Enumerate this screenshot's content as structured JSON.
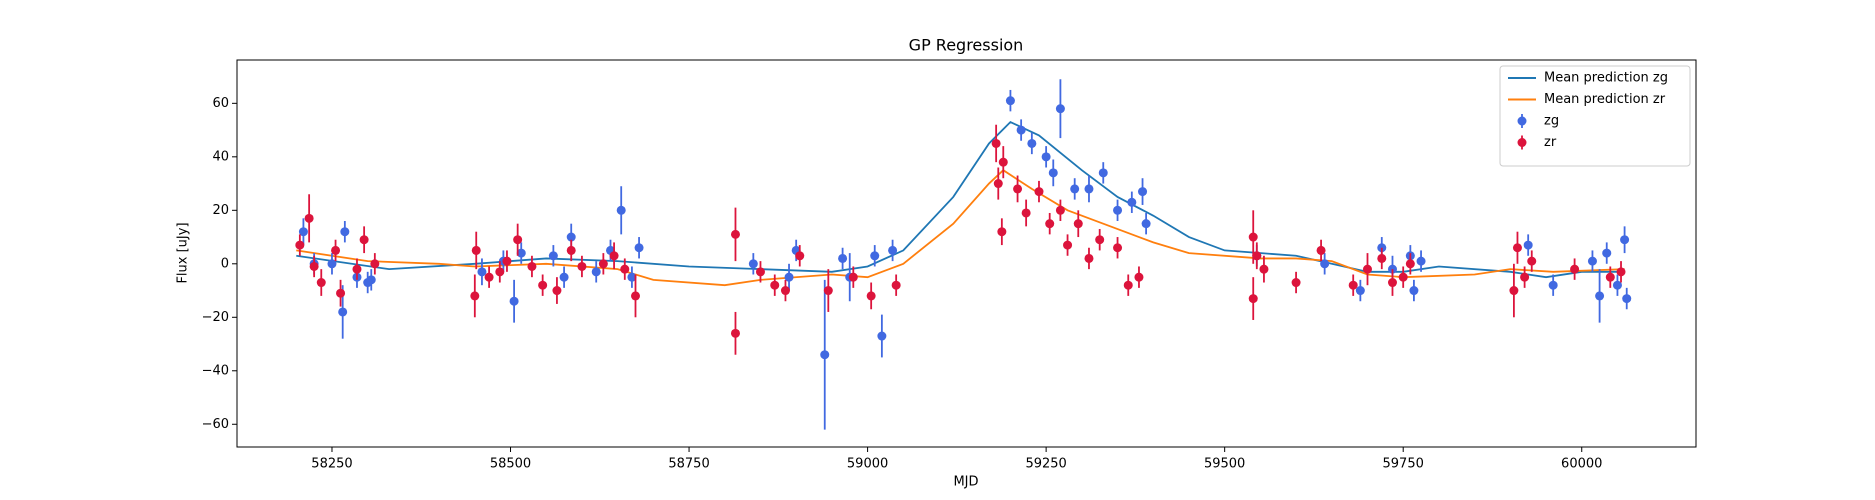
{
  "chart_data": {
    "type": "errorbar",
    "title": "GP Regression",
    "x_label": "MJD",
    "y_label": "Flux [uJy]",
    "xlim": [
      58117,
      60160
    ],
    "ylim": [
      -68.5,
      76.2
    ],
    "xticks": [
      58250,
      58500,
      58750,
      59000,
      59250,
      59500,
      59750,
      60000
    ],
    "yticks": [
      {
        "value": -60,
        "label": "−60"
      },
      {
        "value": -40,
        "label": "−40"
      },
      {
        "value": -20,
        "label": "−20"
      },
      0,
      20,
      40,
      60
    ],
    "legend": "upper right",
    "series": [
      {
        "name": "Mean prediction zg",
        "type": "line",
        "color": "#1f77b4",
        "x": [
          58200,
          58330,
          58450,
          58550,
          58650,
          58750,
          58850,
          58950,
          59000,
          59050,
          59120,
          59170,
          59200,
          59240,
          59300,
          59350,
          59400,
          59450,
          59500,
          59600,
          59650,
          59700,
          59750,
          59800,
          59900,
          59950,
          60000,
          60060
        ],
        "values": [
          3,
          -2,
          0,
          2,
          1,
          -1,
          -2,
          -3,
          -1,
          5,
          25,
          45,
          53,
          48,
          35,
          25,
          18,
          10,
          5,
          3,
          0,
          -3,
          -3,
          -1,
          -3,
          -5,
          -3,
          -3
        ]
      },
      {
        "name": "Mean prediction zr",
        "type": "line",
        "color": "#ff7f0e",
        "x": [
          58200,
          58300,
          58400,
          58450,
          58550,
          58650,
          58700,
          58800,
          58850,
          58950,
          59000,
          59050,
          59120,
          59170,
          59190,
          59230,
          59280,
          59330,
          59400,
          59450,
          59550,
          59600,
          59650,
          59700,
          59750,
          59850,
          59900,
          59960,
          60060
        ],
        "values": [
          5,
          1,
          0,
          -1,
          0,
          -2,
          -6,
          -8,
          -6,
          -4,
          -5,
          0,
          15,
          30,
          35,
          28,
          20,
          15,
          8,
          4,
          2,
          2,
          1,
          -4,
          -5,
          -4,
          -2,
          -3,
          -2
        ]
      },
      {
        "name": "zg",
        "type": "errorbar",
        "color": "#4169e1",
        "x": [
          58210,
          58225,
          58250,
          58265,
          58268,
          58285,
          58300,
          58305,
          58460,
          58490,
          58505,
          58515,
          58560,
          58575,
          58585,
          58620,
          58640,
          58655,
          58670,
          58680,
          58840,
          58890,
          58900,
          58940,
          58965,
          58975,
          59010,
          59020,
          59035,
          59200,
          59215,
          59230,
          59250,
          59260,
          59270,
          59290,
          59310,
          59330,
          59350,
          59370,
          59385,
          59390,
          59545,
          59640,
          59690,
          59720,
          59735,
          59760,
          59765,
          59775,
          59925,
          59960,
          60015,
          60025,
          60035,
          60050,
          60060,
          60063
        ],
        "values": [
          12,
          0,
          0,
          -18,
          12,
          -5,
          -7,
          -6,
          -3,
          1,
          -14,
          4,
          3,
          -5,
          10,
          -3,
          5,
          20,
          -5,
          6,
          0,
          -5,
          5,
          -34,
          2,
          -5,
          3,
          -27,
          5,
          61,
          50,
          45,
          40,
          34,
          58,
          28,
          28,
          34,
          20,
          23,
          27,
          15,
          3,
          0,
          -10,
          6,
          -2,
          3,
          -10,
          1,
          7,
          -8,
          1,
          -12,
          4,
          -8,
          9,
          -13
        ],
        "errors": [
          5,
          4,
          4,
          10,
          4,
          4,
          4,
          4,
          5,
          4,
          8,
          4,
          4,
          4,
          5,
          4,
          4,
          9,
          4,
          4,
          4,
          5,
          4,
          28,
          4,
          9,
          4,
          8,
          4,
          4,
          4,
          4,
          4,
          5,
          11,
          4,
          5,
          4,
          4,
          4,
          5,
          4,
          4,
          4,
          4,
          4,
          5,
          4,
          4,
          4,
          4,
          4,
          4,
          10,
          4,
          4,
          5,
          4
        ]
      },
      {
        "name": "zr",
        "type": "errorbar",
        "color": "#dc143c",
        "x": [
          58205,
          58218,
          58225,
          58235,
          58255,
          58262,
          58285,
          58295,
          58310,
          58450,
          58452,
          58470,
          58485,
          58495,
          58510,
          58530,
          58545,
          58565,
          58585,
          58600,
          58630,
          58645,
          58660,
          58675,
          58815,
          58815,
          58850,
          58870,
          58885,
          58905,
          58945,
          58980,
          59005,
          59040,
          59180,
          59183,
          59188,
          59190,
          59210,
          59222,
          59240,
          59255,
          59270,
          59280,
          59295,
          59310,
          59325,
          59350,
          59365,
          59380,
          59540,
          59540,
          59545,
          59555,
          59600,
          59635,
          59680,
          59700,
          59720,
          59735,
          59750,
          59760,
          59905,
          59910,
          59920,
          59930,
          59990,
          60040,
          60055
        ],
        "values": [
          7,
          17,
          -1,
          -7,
          5,
          -11,
          -2,
          9,
          0,
          -12,
          5,
          -5,
          -3,
          1,
          9,
          -1,
          -8,
          -10,
          5,
          -1,
          0,
          3,
          -2,
          -12,
          11,
          -26,
          -3,
          -8,
          -10,
          3,
          -10,
          -5,
          -12,
          -8,
          45,
          30,
          12,
          38,
          28,
          19,
          27,
          15,
          20,
          7,
          15,
          2,
          9,
          6,
          -8,
          -5,
          -13,
          10,
          3,
          -2,
          -7,
          5,
          -8,
          -2,
          2,
          -7,
          -5,
          0,
          -10,
          6,
          -5,
          1,
          -2,
          -5,
          -3
        ],
        "errors": [
          4,
          9,
          4,
          5,
          4,
          5,
          4,
          5,
          4,
          8,
          7,
          4,
          4,
          4,
          6,
          4,
          4,
          5,
          4,
          4,
          4,
          5,
          4,
          8,
          10,
          8,
          4,
          4,
          4,
          4,
          8,
          4,
          5,
          4,
          7,
          6,
          5,
          6,
          5,
          5,
          4,
          4,
          4,
          4,
          5,
          4,
          4,
          4,
          4,
          4,
          8,
          10,
          5,
          5,
          4,
          4,
          4,
          6,
          4,
          5,
          4,
          4,
          10,
          6,
          4,
          4,
          4,
          4,
          4
        ]
      }
    ]
  }
}
